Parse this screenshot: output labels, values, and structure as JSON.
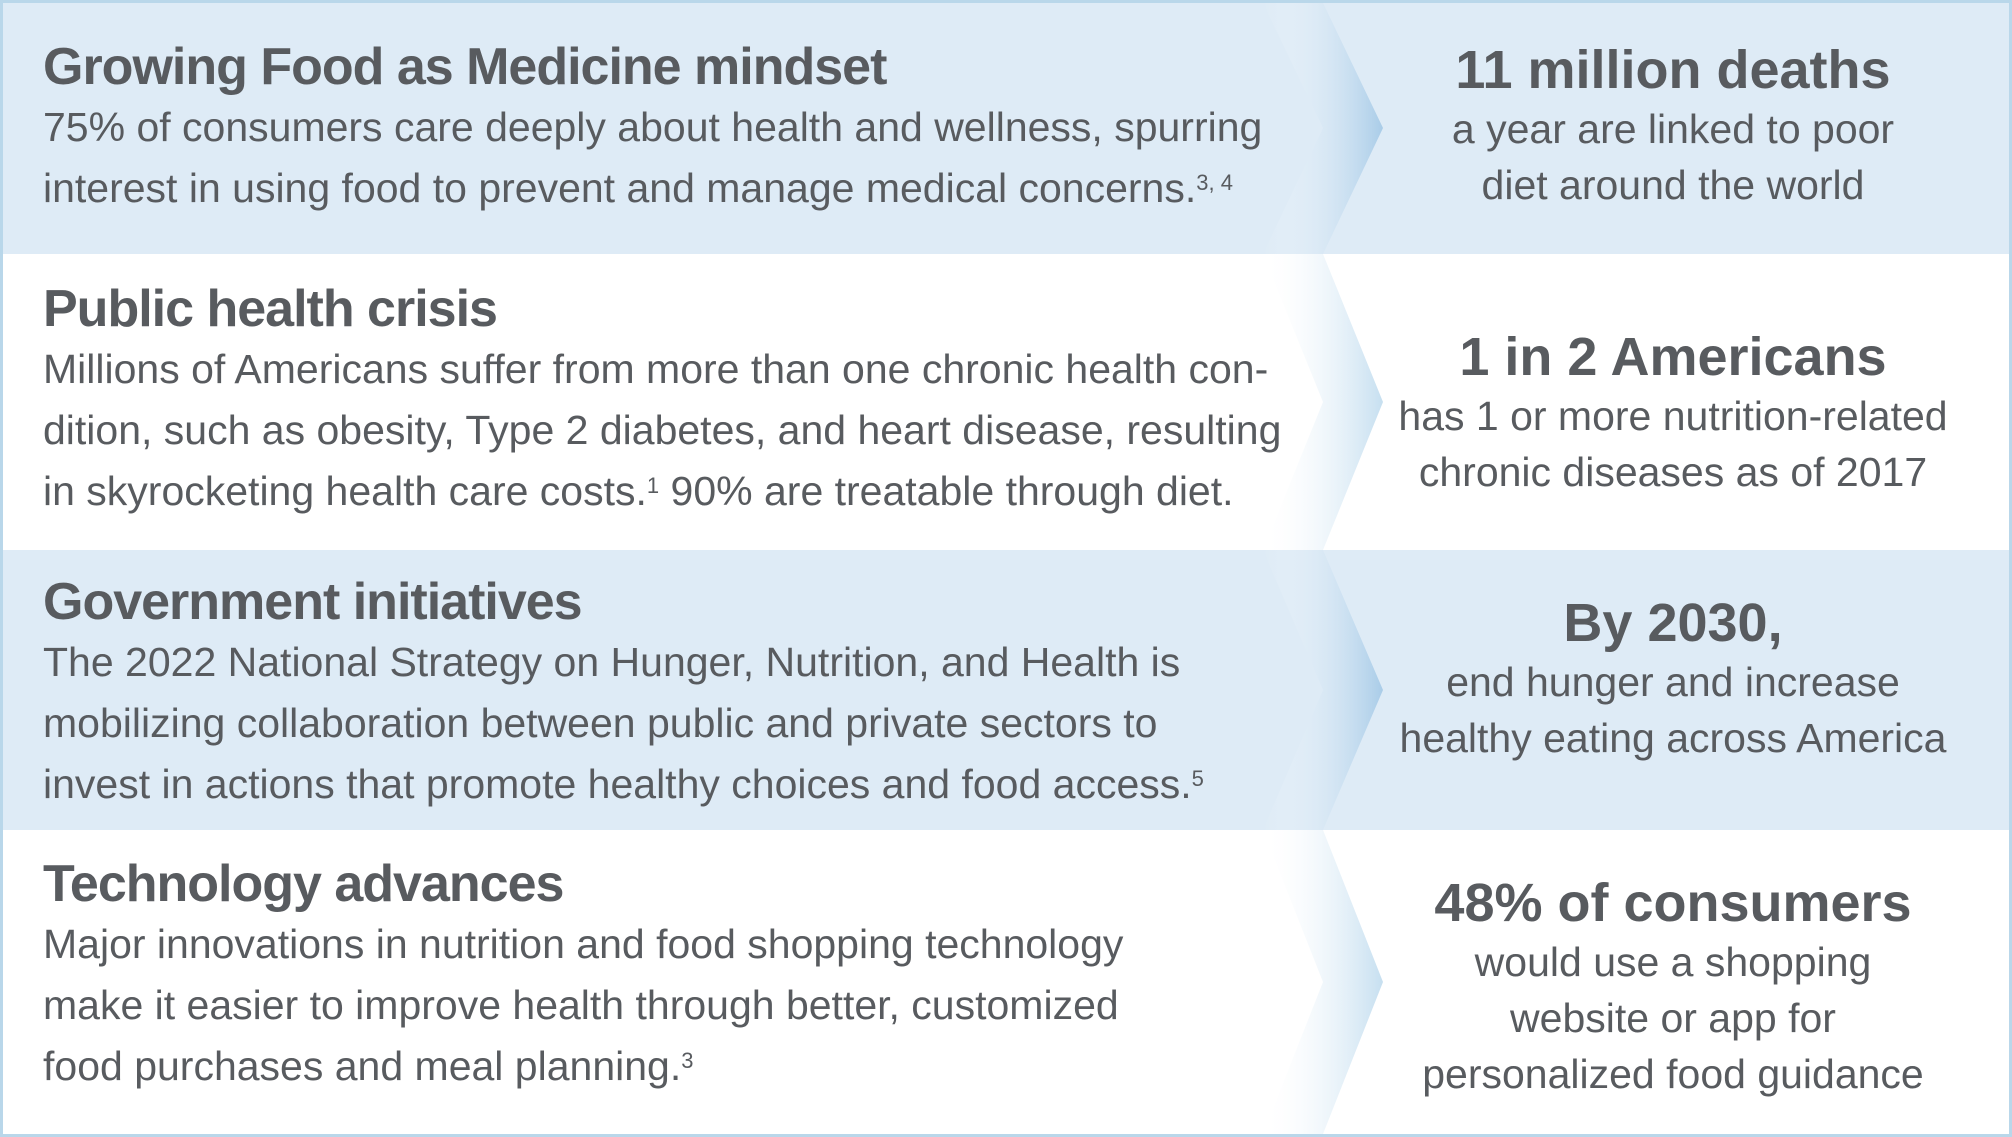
{
  "colors": {
    "shaded_row": "#deebf6",
    "plain_row": "#ffffff",
    "text": "#585b5f",
    "border": "#b9d7ea",
    "chevron": "#b3d2ea"
  },
  "rows": [
    {
      "heading": "Growing Food as Medicine mindset",
      "body_lines": [
        "75% of consumers care deeply about health and wellness, spurring",
        "interest in using food to prevent and manage medical concerns."
      ],
      "body_sup": "3, 4",
      "stat": "11 million deaths",
      "stat_lines": [
        "a year are linked to poor",
        "diet around the world"
      ]
    },
    {
      "heading": "Public health crisis",
      "body_lines": [
        "Millions of Americans suffer from more than one chronic health con-",
        "dition, such as obesity, Type 2 diabetes, and heart disease, resulting",
        "in skyrocketing health care costs."
      ],
      "body_sup": "1",
      "body_tail": " 90% are treatable through diet.",
      "stat": "1 in 2 Americans",
      "stat_lines": [
        "has 1 or more nutrition-related",
        "chronic diseases as of 2017"
      ]
    },
    {
      "heading": "Government initiatives",
      "body_lines": [
        "The 2022 National Strategy on Hunger, Nutrition, and Health is",
        "mobilizing collaboration between public and private sectors to",
        "invest in actions that promote healthy choices and food access."
      ],
      "body_sup": "5",
      "stat": "By 2030,",
      "stat_lines": [
        "end hunger and increase",
        "healthy eating across America"
      ]
    },
    {
      "heading": "Technology advances",
      "body_lines": [
        "Major innovations in nutrition and food shopping technology",
        "make it easier to improve health through better, customized",
        "food purchases and meal planning."
      ],
      "body_sup": "3",
      "stat": "48% of consumers",
      "stat_lines": [
        "would use a shopping",
        "website or app for",
        "personalized food guidance"
      ]
    }
  ]
}
